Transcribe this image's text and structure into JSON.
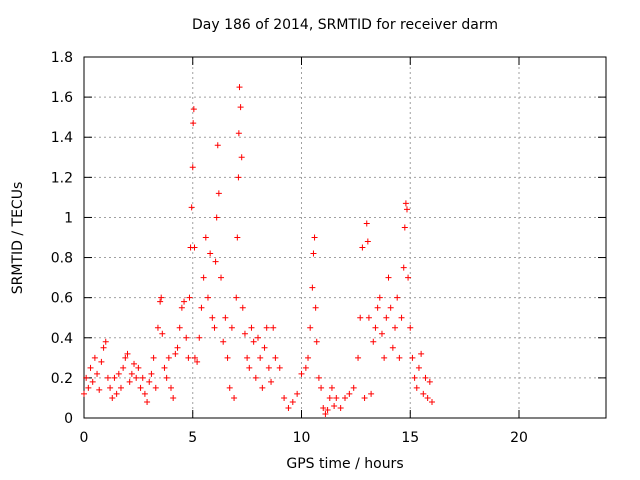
{
  "chart_data": {
    "type": "scatter",
    "title": "Day 186 of 2014, SRMTID for receiver darm",
    "xlabel": "GPS time / hours",
    "ylabel": "SRMTID / TECUs",
    "xlim": [
      0,
      24
    ],
    "ylim": [
      0,
      1.8
    ],
    "xticks": [
      "0",
      "5",
      "10",
      "15",
      "20"
    ],
    "yticks": [
      "0",
      "0.2",
      "0.4",
      "0.6",
      "0.8",
      "1",
      "1.2",
      "1.4",
      "1.6",
      "1.8"
    ],
    "xtick_values": [
      0,
      5,
      10,
      15,
      20
    ],
    "ytick_values": [
      0,
      0.2,
      0.4,
      0.6,
      0.8,
      1.0,
      1.2,
      1.4,
      1.6,
      1.8
    ],
    "grid": true,
    "marker": "+",
    "series": [
      {
        "name": "SRMTID",
        "color": "#ff0000",
        "x": [
          0.0,
          0.1,
          0.2,
          0.3,
          0.4,
          0.5,
          0.6,
          0.7,
          0.8,
          0.9,
          1.0,
          1.1,
          1.2,
          1.3,
          1.4,
          1.5,
          1.6,
          1.7,
          1.8,
          1.9,
          2.0,
          2.1,
          2.2,
          2.3,
          2.4,
          2.5,
          2.6,
          2.7,
          2.8,
          2.9,
          3.0,
          3.1,
          3.2,
          3.3,
          3.4,
          3.5,
          3.55,
          3.6,
          3.7,
          3.8,
          3.9,
          4.0,
          4.1,
          4.2,
          4.3,
          4.4,
          4.5,
          4.6,
          4.7,
          4.8,
          4.85,
          4.9,
          4.95,
          5.0,
          5.02,
          5.05,
          5.08,
          5.1,
          5.2,
          5.3,
          5.4,
          5.5,
          5.6,
          5.7,
          5.8,
          5.9,
          6.0,
          6.05,
          6.1,
          6.15,
          6.2,
          6.3,
          6.4,
          6.5,
          6.6,
          6.7,
          6.8,
          6.9,
          7.0,
          7.05,
          7.1,
          7.12,
          7.15,
          7.2,
          7.25,
          7.3,
          7.4,
          7.5,
          7.6,
          7.7,
          7.8,
          7.9,
          8.0,
          8.1,
          8.2,
          8.3,
          8.4,
          8.5,
          8.6,
          8.7,
          8.8,
          9.0,
          9.2,
          9.4,
          9.6,
          9.8,
          10.0,
          10.2,
          10.3,
          10.4,
          10.5,
          10.55,
          10.6,
          10.65,
          10.7,
          10.8,
          10.9,
          11.0,
          11.1,
          11.2,
          11.3,
          11.4,
          11.5,
          11.6,
          11.8,
          12.0,
          12.2,
          12.4,
          12.6,
          12.7,
          12.8,
          12.9,
          13.0,
          13.05,
          13.1,
          13.2,
          13.3,
          13.4,
          13.5,
          13.6,
          13.7,
          13.8,
          13.9,
          14.0,
          14.1,
          14.2,
          14.3,
          14.4,
          14.5,
          14.6,
          14.7,
          14.75,
          14.8,
          14.85,
          14.9,
          15.0,
          15.1,
          15.2,
          15.3,
          15.4,
          15.5,
          15.6,
          15.7,
          15.8,
          15.9,
          16.0
        ],
        "y": [
          0.12,
          0.2,
          0.15,
          0.25,
          0.18,
          0.3,
          0.22,
          0.14,
          0.28,
          0.35,
          0.38,
          0.2,
          0.15,
          0.1,
          0.2,
          0.12,
          0.22,
          0.15,
          0.25,
          0.3,
          0.32,
          0.18,
          0.22,
          0.27,
          0.2,
          0.25,
          0.15,
          0.2,
          0.12,
          0.08,
          0.18,
          0.22,
          0.3,
          0.15,
          0.45,
          0.58,
          0.6,
          0.42,
          0.25,
          0.2,
          0.3,
          0.15,
          0.1,
          0.32,
          0.35,
          0.45,
          0.55,
          0.58,
          0.4,
          0.3,
          0.6,
          0.85,
          1.05,
          1.25,
          1.47,
          1.54,
          0.85,
          0.3,
          0.28,
          0.4,
          0.55,
          0.7,
          0.9,
          0.6,
          0.82,
          0.5,
          0.45,
          0.78,
          1.0,
          1.36,
          1.12,
          0.7,
          0.38,
          0.5,
          0.3,
          0.15,
          0.45,
          0.1,
          0.6,
          0.9,
          1.2,
          1.42,
          1.65,
          1.55,
          1.3,
          0.55,
          0.42,
          0.3,
          0.25,
          0.45,
          0.38,
          0.2,
          0.4,
          0.3,
          0.15,
          0.35,
          0.45,
          0.25,
          0.18,
          0.45,
          0.3,
          0.25,
          0.1,
          0.05,
          0.08,
          0.12,
          0.22,
          0.25,
          0.3,
          0.45,
          0.65,
          0.82,
          0.9,
          0.55,
          0.38,
          0.2,
          0.15,
          0.05,
          0.02,
          0.04,
          0.1,
          0.15,
          0.06,
          0.1,
          0.05,
          0.1,
          0.12,
          0.15,
          0.3,
          0.5,
          0.85,
          0.1,
          0.97,
          0.88,
          0.5,
          0.12,
          0.38,
          0.45,
          0.55,
          0.6,
          0.42,
          0.3,
          0.5,
          0.7,
          0.55,
          0.35,
          0.45,
          0.6,
          0.3,
          0.5,
          0.75,
          0.95,
          1.07,
          1.04,
          0.7,
          0.45,
          0.3,
          0.2,
          0.15,
          0.25,
          0.32,
          0.12,
          0.2,
          0.1,
          0.18,
          0.08
        ]
      }
    ]
  }
}
